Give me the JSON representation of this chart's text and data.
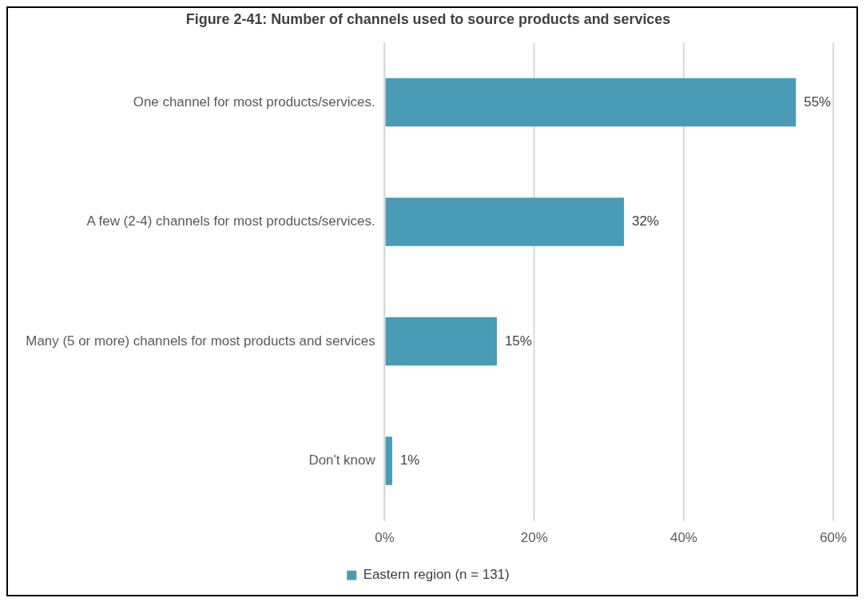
{
  "chart_data": {
    "type": "bar",
    "orientation": "horizontal",
    "title": "Figure 2-41: Number of channels used to source products and services",
    "categories": [
      "One channel for most products/services.",
      "A few (2-4) channels for most products/services.",
      "Many (5 or more) channels for most products and services",
      "Don't know"
    ],
    "series": [
      {
        "name": "Eastern region (n = 131)",
        "color": "#4a9bb5",
        "values": [
          55,
          32,
          15,
          1
        ],
        "value_labels": [
          "55%",
          "32%",
          "15%",
          "1%"
        ]
      }
    ],
    "xlim": [
      0,
      60
    ],
    "xticks": [
      {
        "value": 0,
        "label": "0%"
      },
      {
        "value": 20,
        "label": "20%"
      },
      {
        "value": 40,
        "label": "40%"
      },
      {
        "value": 60,
        "label": "60%"
      }
    ],
    "grid": "x",
    "legend": "bottom"
  }
}
